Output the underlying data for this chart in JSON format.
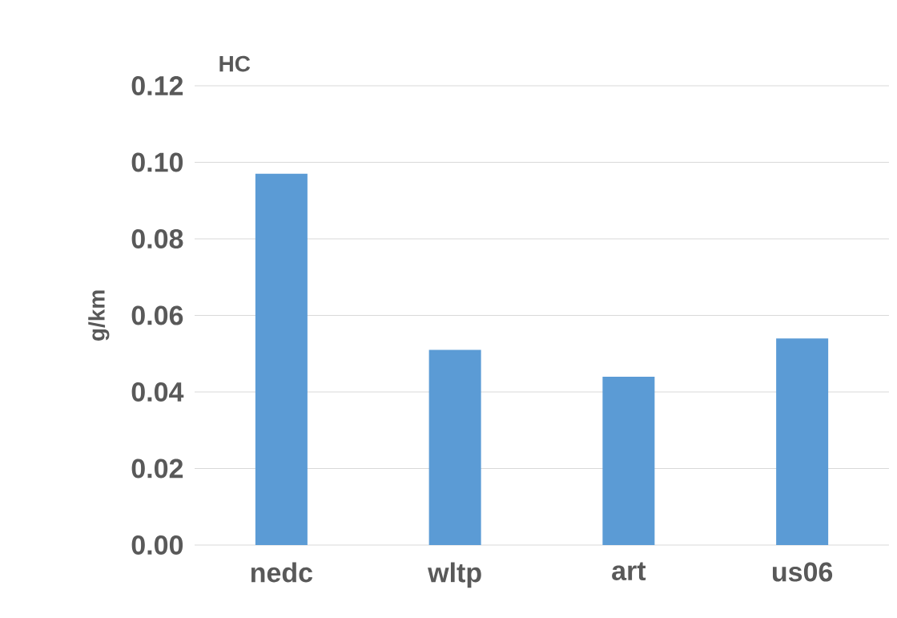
{
  "chart_data": {
    "type": "bar",
    "title": "HC",
    "ylabel": "g/km",
    "categories": [
      "nedc",
      "wltp",
      "art",
      "us06"
    ],
    "values": [
      0.097,
      0.051,
      0.044,
      0.054
    ],
    "color": "#5b9bd5",
    "ylim": [
      0,
      0.12
    ],
    "yticks": [
      {
        "value": 0,
        "label": "0.00"
      },
      {
        "value": 0.02,
        "label": "0.02"
      },
      {
        "value": 0.04,
        "label": "0.04"
      },
      {
        "value": 0.06,
        "label": "0.06"
      },
      {
        "value": 0.08,
        "label": "0.08"
      },
      {
        "value": 0.1,
        "label": "0.10"
      },
      {
        "value": 0.12,
        "label": "0.12"
      }
    ],
    "grid": "y"
  }
}
